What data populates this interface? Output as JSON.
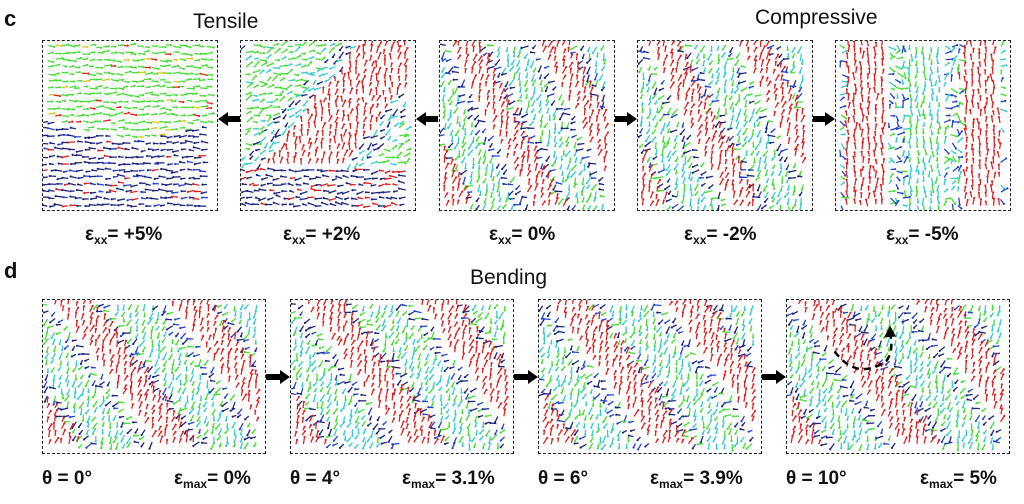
{
  "panel_c": {
    "label": "c",
    "heading_tensile": "Tensile",
    "heading_compressive": "Compressive",
    "panels": [
      {
        "strain_value": "+5%",
        "pattern": "tensile-strong"
      },
      {
        "strain_value": "+2%",
        "pattern": "tensile-mild"
      },
      {
        "strain_value": "0%",
        "pattern": "neutral"
      },
      {
        "strain_value": "-2%",
        "pattern": "compressive-mild"
      },
      {
        "strain_value": "-5%",
        "pattern": "compressive-strong"
      }
    ],
    "strain_symbol": "ε",
    "strain_subscript": "xx",
    "equals": "= "
  },
  "panel_d": {
    "label": "d",
    "heading": "Bending",
    "panels": [
      {
        "theta": "θ = 0°",
        "emax_value": "0%"
      },
      {
        "theta": "θ = 4°",
        "emax_value": "3.1%"
      },
      {
        "theta": "θ = 6°",
        "emax_value": "3.9%"
      },
      {
        "theta": "θ = 10°",
        "emax_value": "5%"
      }
    ],
    "emax_symbol": "ε",
    "emax_subscript": "max",
    "equals": "= "
  },
  "colors": {
    "red": "#e02020",
    "green": "#44dd33",
    "navy": "#1a237e",
    "cyan": "#33cccc",
    "blue": "#2244cc",
    "yellow": "#d6c81a",
    "frame": "#222222"
  }
}
